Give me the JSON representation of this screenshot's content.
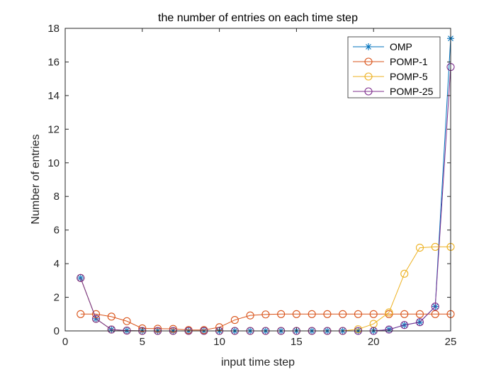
{
  "chart_data": {
    "type": "line",
    "title": "the number of entries on each time step",
    "xlabel": "input time step",
    "ylabel": "Number of entries",
    "xlim": [
      0,
      25
    ],
    "ylim": [
      0,
      18
    ],
    "xticks": [
      0,
      5,
      10,
      15,
      20,
      25
    ],
    "yticks": [
      0,
      2,
      4,
      6,
      8,
      10,
      12,
      14,
      16,
      18
    ],
    "grid": false,
    "legend_position": "top-right",
    "x": [
      1,
      2,
      3,
      4,
      5,
      6,
      7,
      8,
      9,
      10,
      11,
      12,
      13,
      14,
      15,
      16,
      17,
      18,
      19,
      20,
      21,
      22,
      23,
      24,
      25
    ],
    "series": [
      {
        "name": "OMP",
        "color": "#0072BD",
        "marker": "asterisk",
        "values": [
          3.15,
          0.72,
          0.08,
          0.02,
          0.0,
          0.0,
          0.0,
          0.0,
          0.0,
          0.0,
          0.0,
          0.0,
          0.0,
          0.0,
          0.0,
          0.0,
          0.0,
          0.0,
          0.0,
          0.0,
          0.08,
          0.35,
          0.52,
          1.45,
          17.4
        ]
      },
      {
        "name": "POMP-1",
        "color": "#D95319",
        "marker": "circle",
        "values": [
          1.0,
          1.0,
          0.85,
          0.58,
          0.15,
          0.13,
          0.12,
          0.05,
          0.05,
          0.22,
          0.65,
          0.92,
          0.98,
          1.0,
          1.0,
          1.0,
          1.0,
          1.0,
          1.0,
          1.0,
          1.0,
          1.0,
          1.0,
          1.0,
          1.0
        ]
      },
      {
        "name": "POMP-5",
        "color": "#EDB120",
        "marker": "circle",
        "values": [
          3.15,
          0.72,
          0.08,
          0.02,
          0.0,
          0.0,
          0.0,
          0.0,
          0.0,
          0.0,
          0.0,
          0.0,
          0.0,
          0.0,
          0.0,
          0.0,
          0.0,
          0.0,
          0.1,
          0.42,
          1.1,
          3.4,
          4.95,
          5.0,
          5.0
        ]
      },
      {
        "name": "POMP-25",
        "color": "#7E2F8E",
        "marker": "circle",
        "values": [
          3.15,
          0.72,
          0.08,
          0.02,
          0.0,
          0.0,
          0.0,
          0.0,
          0.0,
          0.0,
          0.0,
          0.0,
          0.0,
          0.0,
          0.0,
          0.0,
          0.0,
          0.0,
          0.0,
          0.0,
          0.08,
          0.35,
          0.52,
          1.45,
          15.7
        ]
      }
    ]
  }
}
